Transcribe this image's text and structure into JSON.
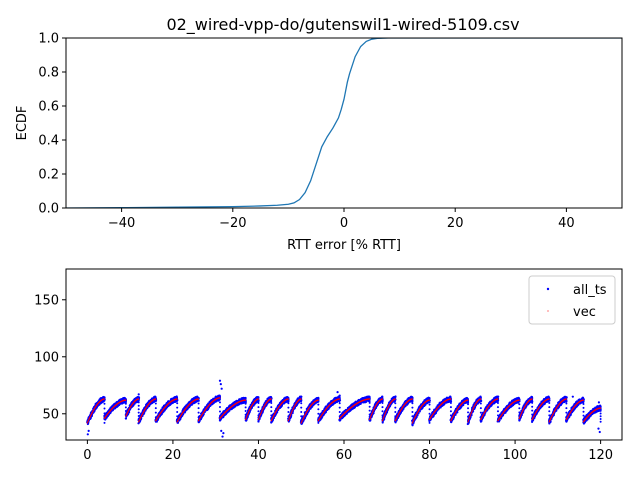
{
  "chart_data": [
    {
      "type": "line",
      "title": "02_wired-vpp-do/gutenswil1-wired-5109.csv",
      "xlabel": "RTT error [% RTT]",
      "ylabel": "ECDF",
      "xlim": [
        -50,
        50
      ],
      "ylim": [
        0.0,
        1.0
      ],
      "xticks": [
        -40,
        -20,
        0,
        20,
        40
      ],
      "xtick_labels": [
        "−40",
        "−20",
        "0",
        "20",
        "40"
      ],
      "yticks": [
        0.0,
        0.2,
        0.4,
        0.6,
        0.8,
        1.0
      ],
      "ytick_labels": [
        "0.0",
        "0.2",
        "0.4",
        "0.6",
        "0.8",
        "1.0"
      ],
      "grid": false,
      "color": "#1f77b4",
      "series": [
        {
          "x": [
            -50,
            -40,
            -30,
            -20,
            -15,
            -12,
            -10,
            -9,
            -8,
            -7,
            -6,
            -5,
            -4,
            -3,
            -2,
            -1,
            -0.5,
            0,
            0.3,
            0.6,
            1,
            2,
            3,
            4,
            5,
            6,
            8,
            10,
            50
          ],
          "y": [
            0.0,
            0.002,
            0.005,
            0.008,
            0.012,
            0.016,
            0.022,
            0.03,
            0.05,
            0.09,
            0.16,
            0.26,
            0.36,
            0.42,
            0.47,
            0.53,
            0.58,
            0.64,
            0.69,
            0.74,
            0.79,
            0.89,
            0.95,
            0.98,
            0.993,
            0.998,
            1.0,
            1.0,
            1.0
          ]
        }
      ]
    },
    {
      "type": "scatter",
      "title": "",
      "xlabel": "",
      "ylabel": "",
      "xlim": [
        -5,
        125
      ],
      "ylim": [
        27,
        177
      ],
      "xticks": [
        0,
        20,
        40,
        60,
        80,
        100,
        120
      ],
      "xtick_labels": [
        "0",
        "20",
        "40",
        "60",
        "80",
        "100",
        "120"
      ],
      "yticks": [
        50,
        100,
        150
      ],
      "ytick_labels": [
        "50",
        "100",
        "150"
      ],
      "grid": false,
      "legend_position": "top-right",
      "sawtooth_cycles": [
        {
          "start": 0,
          "end": 4,
          "low": 42,
          "high": 63
        },
        {
          "start": 4,
          "end": 9,
          "low": 46,
          "high": 62
        },
        {
          "start": 9,
          "end": 12,
          "low": 48,
          "high": 63
        },
        {
          "start": 12,
          "end": 16,
          "low": 43,
          "high": 63
        },
        {
          "start": 16,
          "end": 21,
          "low": 44,
          "high": 63
        },
        {
          "start": 21,
          "end": 26,
          "low": 43,
          "high": 63
        },
        {
          "start": 26,
          "end": 31,
          "low": 44,
          "high": 64
        },
        {
          "start": 31,
          "end": 37,
          "low": 46,
          "high": 62
        },
        {
          "start": 37,
          "end": 40,
          "low": 45,
          "high": 63
        },
        {
          "start": 40,
          "end": 43,
          "low": 45,
          "high": 63
        },
        {
          "start": 43,
          "end": 47,
          "low": 44,
          "high": 63
        },
        {
          "start": 47,
          "end": 50,
          "low": 44,
          "high": 63
        },
        {
          "start": 50,
          "end": 54,
          "low": 42,
          "high": 62
        },
        {
          "start": 54,
          "end": 59,
          "low": 44,
          "high": 63
        },
        {
          "start": 59,
          "end": 66,
          "low": 46,
          "high": 63
        },
        {
          "start": 66,
          "end": 69,
          "low": 45,
          "high": 63
        },
        {
          "start": 69,
          "end": 72,
          "low": 44,
          "high": 63
        },
        {
          "start": 72,
          "end": 76,
          "low": 44,
          "high": 63
        },
        {
          "start": 76,
          "end": 80,
          "low": 42,
          "high": 62
        },
        {
          "start": 80,
          "end": 85,
          "low": 45,
          "high": 63
        },
        {
          "start": 85,
          "end": 89,
          "low": 44,
          "high": 62
        },
        {
          "start": 89,
          "end": 92,
          "low": 43,
          "high": 63
        },
        {
          "start": 92,
          "end": 96,
          "low": 45,
          "high": 63
        },
        {
          "start": 96,
          "end": 101,
          "low": 44,
          "high": 62
        },
        {
          "start": 101,
          "end": 104,
          "low": 46,
          "high": 63
        },
        {
          "start": 104,
          "end": 108,
          "low": 45,
          "high": 63
        },
        {
          "start": 108,
          "end": 112,
          "low": 43,
          "high": 63
        },
        {
          "start": 112,
          "end": 116,
          "low": 45,
          "high": 62
        },
        {
          "start": 116,
          "end": 120,
          "low": 43,
          "high": 55
        }
      ],
      "outliers": [
        {
          "x": 31,
          "y": 79
        },
        {
          "x": 31.2,
          "y": 76
        },
        {
          "x": 31.4,
          "y": 72
        },
        {
          "x": 31.6,
          "y": 30
        },
        {
          "x": 31.8,
          "y": 33
        },
        {
          "x": 31.3,
          "y": 35
        },
        {
          "x": 0.1,
          "y": 32
        },
        {
          "x": 0.3,
          "y": 35
        },
        {
          "x": 12,
          "y": 67
        },
        {
          "x": 58.5,
          "y": 69
        },
        {
          "x": 59,
          "y": 66
        },
        {
          "x": 113.5,
          "y": 65
        },
        {
          "x": 119.5,
          "y": 37
        },
        {
          "x": 119.8,
          "y": 34
        },
        {
          "x": 119.6,
          "y": 60
        }
      ],
      "series": [
        {
          "name": "all_ts",
          "color": "#0000ff",
          "marker": "point"
        },
        {
          "name": "vec",
          "color": "#ff0000",
          "marker": "pixel"
        }
      ]
    }
  ]
}
